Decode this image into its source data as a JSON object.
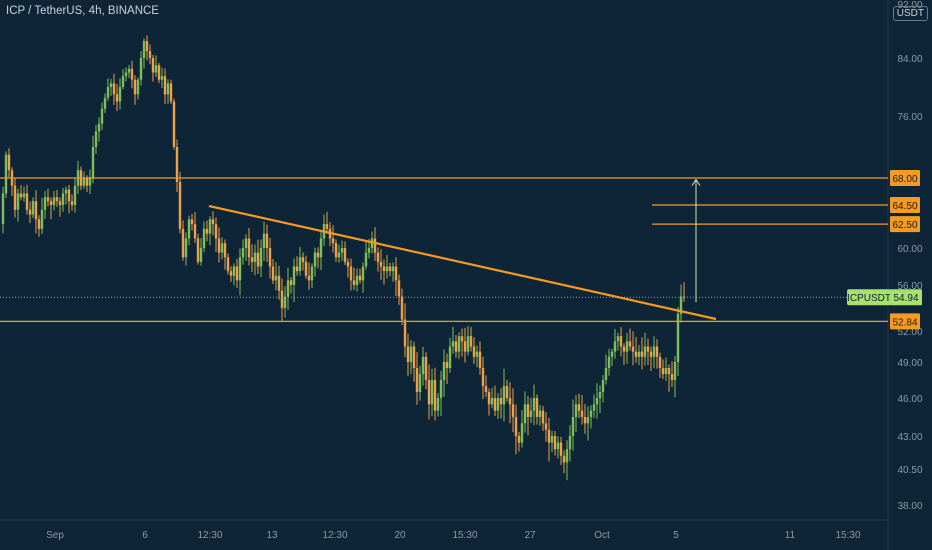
{
  "header": {
    "title": "ICP / TetherUS, 4h, BINANCE",
    "currency": "USDT"
  },
  "colors": {
    "background": "#0d2536",
    "up": "#7fbf5a",
    "down": "#f0a04b",
    "level": "#f59a23",
    "trendline": "#f59a23",
    "target_arrow": "#c9e6a8",
    "price_label_bg": "#f59a23",
    "current_label_bg": "#a8e06c",
    "axis_text": "#8c9aa5"
  },
  "chart_data": {
    "type": "candlestick",
    "symbol": "ICPUSDT",
    "timeframe": "4h",
    "exchange": "BINANCE",
    "current_price": 54.94,
    "y_ticks": [
      38.0,
      40.5,
      43.0,
      46.0,
      49.0,
      52.0,
      56.0,
      60.0,
      64.5,
      68.0,
      76.0,
      84.0,
      92.0
    ],
    "x_ticks": [
      "Sep",
      "6",
      "12:30",
      "13",
      "12:30",
      "20",
      "15:30",
      "27",
      "Oct",
      "5",
      "11",
      "15:30"
    ],
    "horizontal_levels": [
      {
        "value": 68.0,
        "label": "68.00"
      },
      {
        "value": 64.5,
        "label": "64.50"
      },
      {
        "value": 62.5,
        "label": "62.50"
      },
      {
        "value": 52.84,
        "label": "52.84"
      }
    ],
    "current_label": "ICPUSDT",
    "current_value_label": "54.94",
    "trendline": [
      {
        "x": "Sep 8 12:00",
        "y": 64.5
      },
      {
        "x": "Oct 6 12:00",
        "y": 53.0
      }
    ],
    "target_arrow": {
      "x": "Oct 5 20:00",
      "from": 54.5,
      "to": 67.8
    },
    "price_path": [
      [
        0,
        62.5
      ],
      [
        3,
        66
      ],
      [
        6,
        71
      ],
      [
        9,
        69
      ],
      [
        12,
        67
      ],
      [
        15,
        64
      ],
      [
        18,
        66
      ],
      [
        21,
        65.5
      ],
      [
        24,
        66
      ],
      [
        27,
        64
      ],
      [
        30,
        63.5
      ],
      [
        33,
        65
      ],
      [
        36,
        63
      ],
      [
        39,
        62
      ],
      [
        42,
        64
      ],
      [
        45,
        65.5
      ],
      [
        48,
        65
      ],
      [
        51,
        64.5
      ],
      [
        54,
        65.5
      ],
      [
        57,
        65
      ],
      [
        60,
        64.5
      ],
      [
        63,
        66
      ],
      [
        66,
        66.5
      ],
      [
        69,
        65
      ],
      [
        72,
        64.5
      ],
      [
        75,
        67
      ],
      [
        78,
        69
      ],
      [
        81,
        67
      ],
      [
        84,
        68
      ],
      [
        87,
        67
      ],
      [
        90,
        68
      ],
      [
        93,
        72
      ],
      [
        96,
        74
      ],
      [
        99,
        75
      ],
      [
        102,
        77
      ],
      [
        105,
        78.5
      ],
      [
        108,
        80
      ],
      [
        111,
        80.5
      ],
      [
        114,
        79
      ],
      [
        117,
        78
      ],
      [
        120,
        80
      ],
      [
        123,
        81.5
      ],
      [
        126,
        82
      ],
      [
        129,
        82.5
      ],
      [
        132,
        81
      ],
      [
        135,
        79
      ],
      [
        138,
        81
      ],
      [
        141,
        84
      ],
      [
        144,
        86.5
      ],
      [
        147,
        85
      ],
      [
        150,
        84
      ],
      [
        153,
        82
      ],
      [
        156,
        83
      ],
      [
        159,
        81
      ],
      [
        162,
        81.5
      ],
      [
        165,
        79
      ],
      [
        168,
        80.5
      ],
      [
        171,
        78
      ],
      [
        174,
        72
      ],
      [
        177,
        67.5
      ],
      [
        180,
        62
      ],
      [
        183,
        59
      ],
      [
        186,
        61
      ],
      [
        189,
        63
      ],
      [
        192,
        62.5
      ],
      [
        195,
        61
      ],
      [
        198,
        58.5
      ],
      [
        201,
        60
      ],
      [
        204,
        62
      ],
      [
        207,
        61.5
      ],
      [
        210,
        63
      ],
      [
        213,
        62.5
      ],
      [
        216,
        61
      ],
      [
        219,
        59.5
      ],
      [
        222,
        60.5
      ],
      [
        225,
        59
      ],
      [
        228,
        57.5
      ],
      [
        231,
        57
      ],
      [
        234,
        58
      ],
      [
        237,
        56.5
      ],
      [
        240,
        59
      ],
      [
        243,
        60
      ],
      [
        246,
        61
      ],
      [
        249,
        59
      ],
      [
        252,
        58.5
      ],
      [
        255,
        59.5
      ],
      [
        258,
        58
      ],
      [
        261,
        60
      ],
      [
        264,
        61.5
      ],
      [
        267,
        60
      ],
      [
        270,
        58
      ],
      [
        273,
        56.5
      ],
      [
        276,
        57
      ],
      [
        279,
        55.5
      ],
      [
        282,
        54
      ],
      [
        285,
        55
      ],
      [
        288,
        56.5
      ],
      [
        291,
        56
      ],
      [
        294,
        58
      ],
      [
        297,
        57.5
      ],
      [
        300,
        59
      ],
      [
        303,
        58.5
      ],
      [
        306,
        57
      ],
      [
        309,
        56.5
      ],
      [
        312,
        58
      ],
      [
        315,
        59.5
      ],
      [
        318,
        59
      ],
      [
        321,
        61
      ],
      [
        324,
        62.5
      ],
      [
        327,
        62
      ],
      [
        330,
        61
      ],
      [
        333,
        60.5
      ],
      [
        336,
        59
      ],
      [
        339,
        59.5
      ],
      [
        342,
        60
      ],
      [
        345,
        58.5
      ],
      [
        348,
        58
      ],
      [
        351,
        56.5
      ],
      [
        354,
        56
      ],
      [
        357,
        57
      ],
      [
        360,
        56.5
      ],
      [
        363,
        58
      ],
      [
        366,
        59.5
      ],
      [
        369,
        60
      ],
      [
        372,
        61
      ],
      [
        375,
        59.5
      ],
      [
        378,
        58.5
      ],
      [
        381,
        58
      ],
      [
        384,
        57.5
      ],
      [
        387,
        58
      ],
      [
        390,
        57.5
      ],
      [
        393,
        58
      ],
      [
        396,
        56.5
      ],
      [
        399,
        55
      ],
      [
        402,
        53
      ],
      [
        405,
        50.5
      ],
      [
        408,
        49
      ],
      [
        411,
        50.5
      ],
      [
        414,
        48.5
      ],
      [
        417,
        46.5
      ],
      [
        420,
        48
      ],
      [
        423,
        49.5
      ],
      [
        426,
        47.5
      ],
      [
        429,
        45.5
      ],
      [
        432,
        47.5
      ],
      [
        435,
        45
      ],
      [
        438,
        46
      ],
      [
        441,
        47.5
      ],
      [
        444,
        49
      ],
      [
        447,
        48.5
      ],
      [
        450,
        50.5
      ],
      [
        453,
        51
      ],
      [
        456,
        50
      ],
      [
        459,
        51.5
      ],
      [
        462,
        51
      ],
      [
        465,
        50
      ],
      [
        468,
        51.5
      ],
      [
        471,
        50.5
      ],
      [
        474,
        49.5
      ],
      [
        477,
        50
      ],
      [
        480,
        48.5
      ],
      [
        483,
        47
      ],
      [
        486,
        46.5
      ],
      [
        489,
        45.5
      ],
      [
        492,
        46
      ],
      [
        495,
        45
      ],
      [
        498,
        46
      ],
      [
        501,
        45.5
      ],
      [
        504,
        47
      ],
      [
        507,
        46
      ],
      [
        510,
        45.5
      ],
      [
        513,
        44.5
      ],
      [
        516,
        43
      ],
      [
        519,
        42.5
      ],
      [
        522,
        44
      ],
      [
        525,
        45.5
      ],
      [
        528,
        44.5
      ],
      [
        531,
        45
      ],
      [
        534,
        46
      ],
      [
        537,
        44.5
      ],
      [
        540,
        45
      ],
      [
        543,
        44
      ],
      [
        546,
        43.5
      ],
      [
        549,
        42.5
      ],
      [
        552,
        43
      ],
      [
        555,
        42
      ],
      [
        558,
        42.5
      ],
      [
        561,
        41.5
      ],
      [
        564,
        41
      ],
      [
        567,
        42
      ],
      [
        570,
        43
      ],
      [
        573,
        44.5
      ],
      [
        576,
        45.5
      ],
      [
        579,
        45
      ],
      [
        582,
        44.5
      ],
      [
        585,
        44
      ],
      [
        588,
        44.5
      ],
      [
        591,
        45
      ],
      [
        594,
        45.5
      ],
      [
        597,
        46
      ],
      [
        600,
        46.5
      ],
      [
        603,
        47.5
      ],
      [
        606,
        48.5
      ],
      [
        609,
        49.5
      ],
      [
        612,
        50
      ],
      [
        615,
        51
      ],
      [
        618,
        51.5
      ],
      [
        621,
        50.5
      ],
      [
        624,
        50
      ],
      [
        627,
        51
      ],
      [
        630,
        50.5
      ],
      [
        633,
        50
      ],
      [
        636,
        49.5
      ],
      [
        639,
        50
      ],
      [
        642,
        49.5
      ],
      [
        645,
        50.5
      ],
      [
        648,
        50
      ],
      [
        651,
        49.5
      ],
      [
        654,
        50.5
      ],
      [
        657,
        49.5
      ],
      [
        660,
        48.5
      ],
      [
        663,
        48
      ],
      [
        666,
        48.5
      ],
      [
        669,
        48
      ],
      [
        672,
        47.5
      ],
      [
        675,
        49
      ],
      [
        678,
        53.5
      ],
      [
        681,
        55
      ],
      [
        684,
        54.94
      ]
    ]
  }
}
